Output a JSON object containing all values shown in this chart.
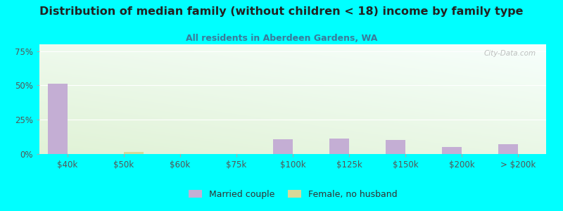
{
  "title": "Distribution of median family (without children < 18) income by family type",
  "subtitle": "All residents in Aberdeen Gardens, WA",
  "background_color": "#00FFFF",
  "categories": [
    "$40k",
    "$50k",
    "$60k",
    "$75k",
    "$100k",
    "$125k",
    "$150k",
    "$200k",
    "> $200k"
  ],
  "married_couple": [
    51.5,
    0,
    0,
    0,
    11.0,
    11.5,
    10.5,
    5.0,
    7.0
  ],
  "female_no_husband": [
    0,
    1.5,
    0,
    0,
    0,
    0,
    0,
    0,
    0
  ],
  "married_color": "#c4aed4",
  "female_color": "#d8d898",
  "bar_width": 0.35,
  "ylim": [
    0,
    80
  ],
  "yticks": [
    0,
    25,
    50,
    75
  ],
  "ytick_labels": [
    "0%",
    "25%",
    "50%",
    "75%"
  ],
  "legend_married": "Married couple",
  "legend_female": "Female, no husband",
  "watermark": "City-Data.com",
  "title_fontsize": 11.5,
  "subtitle_fontsize": 9,
  "axis_fontsize": 8.5
}
